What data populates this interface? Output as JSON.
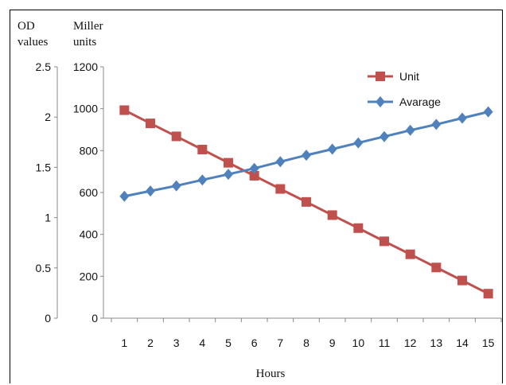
{
  "chart_data": {
    "type": "line",
    "title": "",
    "xlabel": "Hours",
    "left_axis": {
      "label_line1": "OD",
      "label_line2": "values",
      "ylim": [
        0,
        2.5
      ],
      "ticks": [
        "0",
        "0.5",
        "1",
        "1.5",
        "2",
        "2.5"
      ]
    },
    "right_axis": {
      "label_line1": "Miller",
      "label_line2": "units",
      "ylim": [
        0,
        1200
      ],
      "ticks": [
        "0",
        "200",
        "400",
        "600",
        "800",
        "1000",
        "1200"
      ]
    },
    "x": [
      "1",
      "2",
      "3",
      "4",
      "5",
      "6",
      "7",
      "8",
      "9",
      "10",
      "11",
      "12",
      "13",
      "14",
      "15"
    ],
    "series": [
      {
        "name": "Unit",
        "axis": "right",
        "color": "#C0504D",
        "marker": "square",
        "values": [
          993,
          930,
          868,
          805,
          742,
          680,
          617,
          555,
          492,
          430,
          367,
          305,
          242,
          180,
          117
        ]
      },
      {
        "name": "Avarage",
        "axis": "right",
        "color": "#4F81BD",
        "marker": "diamond",
        "values": [
          582,
          607,
          632,
          660,
          687,
          715,
          747,
          778,
          807,
          837,
          867,
          897,
          925,
          955,
          985
        ]
      }
    ],
    "legend_position": "top-right",
    "grid": false
  }
}
